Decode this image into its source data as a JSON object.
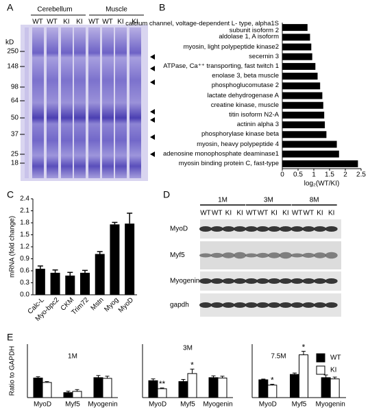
{
  "panel_labels": [
    "A",
    "B",
    "C",
    "D",
    "E"
  ],
  "gel": {
    "tissues": [
      "Cerebellum",
      "Muscle"
    ],
    "lanes": [
      "WT",
      "WT",
      "KI",
      "KI",
      "WT",
      "WT",
      "KI",
      "KI"
    ],
    "unit": "kD",
    "markers": [
      250,
      148,
      98,
      64,
      50,
      37,
      25,
      18
    ]
  },
  "blot": {
    "timepoints": [
      "1M",
      "3M",
      "8M"
    ],
    "lanes": [
      "WT",
      "WT",
      "KI",
      "KI",
      "WT",
      "WT",
      "KI",
      "KI",
      "WT",
      "WT",
      "KI",
      "KI"
    ],
    "rows": [
      "MyoD",
      "Myf5",
      "Myogenin",
      "gapdh"
    ]
  },
  "chart_data": [
    {
      "type": "hbar",
      "categories": [
        "calcium channel, voltage-dependent L- type, alpha1S subunit isoform 2",
        "aldolase 1, A isoform",
        "myosin, light polypeptide kinase2",
        "secernin 3",
        "ATPase, Ca⁺⁺ transporting, fast twitch 1",
        "enolase 3, beta muscle",
        "phosphoglucomutase 2",
        "lactate dehydrogenase A",
        "creatine kinase, muscle",
        "titin isoform N2-A",
        "actinin alpha 3",
        "phosphorylase kinase beta",
        "myosin, heavy polypeptide 4",
        "adenosine monophosphate deaminase1",
        "myosin binding protein C, fast-type"
      ],
      "values": [
        0.8,
        0.88,
        0.92,
        0.95,
        1.05,
        1.12,
        1.2,
        1.27,
        1.3,
        1.33,
        1.35,
        1.4,
        1.73,
        1.8,
        2.4
      ],
      "color": "#000000",
      "xlabel": "log₂(WT/KI)",
      "xlim": [
        0,
        2.5
      ],
      "xticks": [
        0,
        0.5,
        1,
        1.5,
        2,
        2.5
      ]
    },
    {
      "type": "bar",
      "ylabel": "mRNA (fold change)",
      "categories": [
        "Calc-L",
        "Myo-bpc2",
        "CKM",
        "Trim72",
        "Mstn",
        "Myog",
        "MyoD"
      ],
      "values": [
        0.65,
        0.55,
        0.48,
        0.55,
        1.02,
        1.76,
        1.78
      ],
      "errors": [
        0.07,
        0.07,
        0.08,
        0.06,
        0.06,
        0.05,
        0.26
      ],
      "color": "#000000",
      "ylim": [
        0,
        2.4
      ],
      "yticks": [
        {
          "value": 0,
          "label": "0.0"
        },
        0.3,
        0.6,
        0.9,
        1.2,
        1.5,
        1.8,
        2.1,
        2.4
      ]
    },
    {
      "type": "grouped_bar",
      "title": "1M",
      "ylabel": "Ratio  to GAPDH",
      "categories": [
        "MyoD",
        "Myf5",
        "Myogenin"
      ],
      "series": [
        {
          "color": "#000000",
          "values": [
            1.1,
            0.28,
            1.12
          ],
          "errors": [
            0.07,
            0.08,
            0.12
          ]
        },
        {
          "color": "#ffffff",
          "values": [
            0.85,
            0.35,
            1.08
          ],
          "errors": [
            0.05,
            0.1,
            0.12
          ]
        }
      ],
      "ylim": [
        0,
        3
      ]
    },
    {
      "type": "grouped_bar",
      "title": "3M",
      "categories": [
        "MyoD",
        "Myf5",
        "Myogenin"
      ],
      "series": [
        {
          "color": "#000000",
          "values": [
            0.95,
            0.9,
            1.12
          ],
          "errors": [
            0.1,
            0.12,
            0.1
          ]
        },
        {
          "color": "#ffffff",
          "values": [
            0.5,
            1.35,
            1.1
          ],
          "errors": [
            0.04,
            0.25,
            0.1
          ],
          "significance": [
            "**",
            "*",
            null
          ]
        }
      ],
      "ylim": [
        0,
        3
      ]
    },
    {
      "type": "grouped_bar",
      "title": "7.5M",
      "categories": [
        "MyoD",
        "Myf5",
        "Myogenin"
      ],
      "series": [
        {
          "name": "WT",
          "color": "#000000",
          "values": [
            1.0,
            1.3,
            1.12
          ],
          "errors": [
            0.04,
            0.08,
            0.15
          ]
        },
        {
          "name": "KI",
          "color": "#ffffff",
          "values": [
            0.7,
            2.4,
            1.05
          ],
          "errors": [
            0.05,
            0.2,
            0.1
          ],
          "significance": [
            "*",
            "*",
            null
          ]
        }
      ],
      "ylim": [
        0,
        3
      ]
    }
  ]
}
